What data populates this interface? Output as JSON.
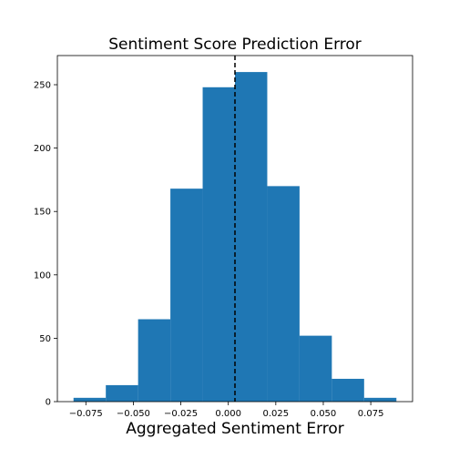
{
  "chart_data": {
    "type": "bar",
    "title": "Sentiment Score Prediction Error",
    "xlabel": "Aggregated Sentiment Error",
    "ylabel": "",
    "bin_edges": [
      -0.0815,
      -0.0645,
      -0.0475,
      -0.0305,
      -0.0135,
      0.0035,
      0.0205,
      0.0375,
      0.0545,
      0.0715,
      0.0885
    ],
    "values": [
      3,
      13,
      65,
      168,
      248,
      260,
      170,
      52,
      18,
      3
    ],
    "mean_line_x": 0.0035,
    "xlim": [
      -0.09,
      0.097
    ],
    "ylim": [
      0,
      273
    ],
    "xticks": [
      -0.075,
      -0.05,
      -0.025,
      0.0,
      0.025,
      0.05,
      0.075
    ],
    "xtick_labels": [
      "−0.075",
      "−0.050",
      "−0.025",
      "0.000",
      "0.025",
      "0.050",
      "0.075"
    ],
    "yticks": [
      0,
      50,
      100,
      150,
      200,
      250
    ],
    "ytick_labels": [
      "0",
      "50",
      "100",
      "150",
      "200",
      "250"
    ],
    "grid": false,
    "bar_color": "#1f77b4"
  }
}
